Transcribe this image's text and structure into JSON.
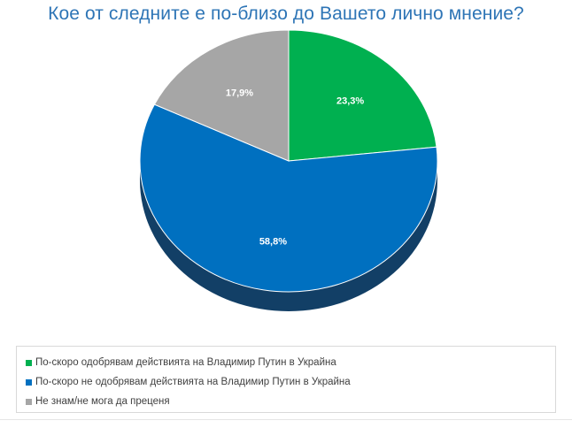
{
  "chart_data": {
    "type": "pie",
    "title": "Кое от следните е по-близо до Вашето лично мнение?",
    "slices": [
      {
        "name": "По-скоро одобрявам действията на Владимир Путин в Украйна",
        "value": 23.3,
        "label": "23,3%",
        "color": "#00b050",
        "side_color": "#006d33"
      },
      {
        "name": "По-скоро не одобрявам действията на Владимир Путин в Украйна",
        "value": 58.8,
        "label": "58,8%",
        "color": "#0070c0",
        "side_color": "#123f66"
      },
      {
        "name": "Не знам/не мога да преценя",
        "value": 17.9,
        "label": "17,9%",
        "color": "#a6a6a6",
        "side_color": "#6b6b6b"
      }
    ],
    "legend_position": "bottom"
  }
}
